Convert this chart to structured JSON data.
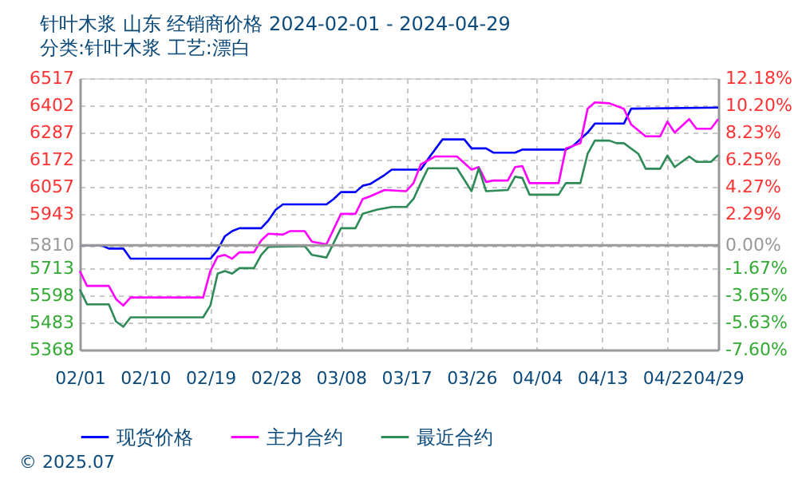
{
  "chart_data": {
    "type": "line",
    "title": "针叶木浆 山东 经销商价格 2024-02-01 - 2024-04-29",
    "subtitle": "分类:针叶木浆 工艺:漂白",
    "xlim": [
      "2024-02-01",
      "2024-04-29"
    ],
    "xticks": [
      {
        "value": "2024-02-01",
        "label": "02/01"
      },
      {
        "value": "2024-02-10",
        "label": "02/10"
      },
      {
        "value": "2024-02-19",
        "label": "02/19"
      },
      {
        "value": "2024-02-28",
        "label": "02/28"
      },
      {
        "value": "2024-03-08",
        "label": "03/08"
      },
      {
        "value": "2024-03-17",
        "label": "03/17"
      },
      {
        "value": "2024-03-26",
        "label": "03/26"
      },
      {
        "value": "2024-04-04",
        "label": "04/04"
      },
      {
        "value": "2024-04-13",
        "label": "04/13"
      },
      {
        "value": "2024-04-22",
        "label": "04/22"
      },
      {
        "value": "2024-04-29",
        "label": "04/29"
      }
    ],
    "ylim": [
      5368,
      6517
    ],
    "yticks": [
      5368,
      5483,
      5598,
      5713,
      5810,
      5943,
      6057,
      6172,
      6287,
      6402,
      6517
    ],
    "y2lim": [
      -7.6,
      12.18
    ],
    "y2ticks": [
      {
        "value": -7.6,
        "label": "-7.60%"
      },
      {
        "value": -5.63,
        "label": "-5.63%"
      },
      {
        "value": -3.65,
        "label": "-3.65%"
      },
      {
        "value": -1.67,
        "label": "-1.67%"
      },
      {
        "value": 0,
        "label": "0.00%"
      },
      {
        "value": 2.29,
        "label": "2.29%"
      },
      {
        "value": 4.27,
        "label": "4.27%"
      },
      {
        "value": 6.25,
        "label": "6.25%"
      },
      {
        "value": 8.23,
        "label": "8.23%"
      },
      {
        "value": 10.2,
        "label": "10.20%"
      },
      {
        "value": 12.18,
        "label": "12.18%"
      }
    ],
    "ref_lines": [
      {
        "axis": "y2",
        "value": 0,
        "color": "#999999"
      }
    ],
    "grid": true,
    "legend": "bottom",
    "marker": "none",
    "line_style": "solid",
    "annotations": [
      "© 2025.07"
    ],
    "series": [
      {
        "name": "现货价格",
        "color": "#0000ff",
        "x": [
          "2024-02-01",
          "2024-02-04",
          "2024-02-05",
          "2024-02-07",
          "2024-02-08",
          "2024-02-19",
          "2024-02-20",
          "2024-02-21",
          "2024-02-22",
          "2024-02-23",
          "2024-02-26",
          "2024-02-27",
          "2024-02-28",
          "2024-02-29",
          "2024-03-06",
          "2024-03-07",
          "2024-03-08",
          "2024-03-10",
          "2024-03-11",
          "2024-03-12",
          "2024-03-14",
          "2024-03-15",
          "2024-03-19",
          "2024-03-20",
          "2024-03-22",
          "2024-03-25",
          "2024-03-26",
          "2024-03-28",
          "2024-03-29",
          "2024-04-01",
          "2024-04-02",
          "2024-04-08",
          "2024-04-09",
          "2024-04-11",
          "2024-04-12",
          "2024-04-16",
          "2024-04-17",
          "2024-04-29"
        ],
        "values": [
          5810,
          5810,
          5796,
          5796,
          5753,
          5753,
          5790,
          5848,
          5870,
          5882,
          5882,
          5915,
          5960,
          5983,
          5983,
          6006,
          6035,
          6035,
          6062,
          6069,
          6107,
          6130,
          6130,
          6175,
          6258,
          6258,
          6220,
          6220,
          6202,
          6202,
          6215,
          6215,
          6231,
          6287,
          6325,
          6325,
          6388,
          6393
        ]
      },
      {
        "name": "主力合约",
        "color": "#ff00ff",
        "x": [
          "2024-02-01",
          "2024-02-02",
          "2024-02-05",
          "2024-02-06",
          "2024-02-07",
          "2024-02-08",
          "2024-02-18",
          "2024-02-19",
          "2024-02-20",
          "2024-02-21",
          "2024-02-22",
          "2024-02-23",
          "2024-02-25",
          "2024-02-26",
          "2024-02-27",
          "2024-02-29",
          "2024-03-01",
          "2024-03-03",
          "2024-03-04",
          "2024-03-06",
          "2024-03-08",
          "2024-03-10",
          "2024-03-11",
          "2024-03-12",
          "2024-03-14",
          "2024-03-17",
          "2024-03-18",
          "2024-03-19",
          "2024-03-21",
          "2024-03-24",
          "2024-03-26",
          "2024-03-27",
          "2024-03-28",
          "2024-03-29",
          "2024-03-31",
          "2024-04-01",
          "2024-04-02",
          "2024-04-03",
          "2024-04-07",
          "2024-04-08",
          "2024-04-09",
          "2024-04-10",
          "2024-04-11",
          "2024-04-12",
          "2024-04-14",
          "2024-04-16",
          "2024-04-17",
          "2024-04-19",
          "2024-04-21",
          "2024-04-22",
          "2024-04-23",
          "2024-04-25",
          "2024-04-26",
          "2024-04-28",
          "2024-04-29"
        ],
        "values": [
          5701,
          5638,
          5638,
          5582,
          5555,
          5589,
          5589,
          5701,
          5762,
          5769,
          5753,
          5780,
          5780,
          5830,
          5859,
          5855,
          5870,
          5870,
          5825,
          5814,
          5943,
          5943,
          6006,
          6017,
          6044,
          6039,
          6073,
          6152,
          6186,
          6186,
          6130,
          6141,
          6078,
          6084,
          6084,
          6141,
          6145,
          6073,
          6073,
          6220,
          6231,
          6242,
          6388,
          6415,
          6411,
          6388,
          6321,
          6271,
          6271,
          6333,
          6287,
          6344,
          6303,
          6303,
          6344
        ]
      },
      {
        "name": "最近合约",
        "color": "#2e8b57",
        "x": [
          "2024-02-01",
          "2024-02-02",
          "2024-02-05",
          "2024-02-06",
          "2024-02-07",
          "2024-02-08",
          "2024-02-18",
          "2024-02-19",
          "2024-02-20",
          "2024-02-21",
          "2024-02-22",
          "2024-02-23",
          "2024-02-25",
          "2024-02-26",
          "2024-02-27",
          "2024-03-03",
          "2024-03-04",
          "2024-03-06",
          "2024-03-08",
          "2024-03-10",
          "2024-03-11",
          "2024-03-13",
          "2024-03-15",
          "2024-03-17",
          "2024-03-18",
          "2024-03-19",
          "2024-03-20",
          "2024-03-24",
          "2024-03-26",
          "2024-03-27",
          "2024-03-28",
          "2024-03-31",
          "2024-04-01",
          "2024-04-02",
          "2024-04-03",
          "2024-04-07",
          "2024-04-08",
          "2024-04-10",
          "2024-04-11",
          "2024-04-12",
          "2024-04-14",
          "2024-04-15",
          "2024-04-16",
          "2024-04-18",
          "2024-04-19",
          "2024-04-21",
          "2024-04-22",
          "2024-04-23",
          "2024-04-25",
          "2024-04-26",
          "2024-04-28",
          "2024-04-29"
        ],
        "values": [
          5623,
          5560,
          5560,
          5487,
          5465,
          5505,
          5505,
          5555,
          5690,
          5701,
          5690,
          5713,
          5713,
          5769,
          5803,
          5807,
          5769,
          5758,
          5882,
          5882,
          5943,
          5961,
          5972,
          5972,
          6006,
          6073,
          6136,
          6136,
          6039,
          6136,
          6039,
          6044,
          6100,
          6095,
          6024,
          6024,
          6073,
          6073,
          6197,
          6253,
          6253,
          6242,
          6242,
          6197,
          6134,
          6134,
          6190,
          6141,
          6186,
          6163,
          6163,
          6192
        ]
      }
    ]
  }
}
